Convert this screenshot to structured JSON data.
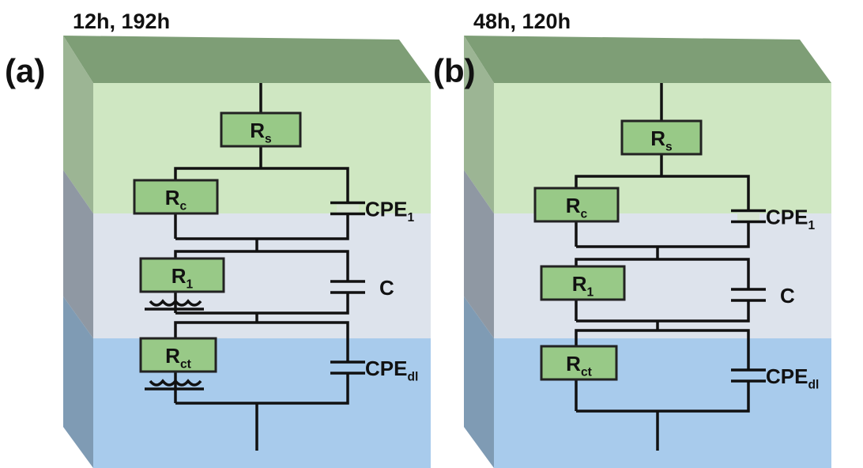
{
  "panels": [
    {
      "label": "(a)",
      "title": "12h, 192h",
      "resistors": [
        {
          "main": "R",
          "sub": "s"
        },
        {
          "main": "R",
          "sub": "c"
        },
        {
          "main": "R",
          "sub": "1"
        },
        {
          "main": "R",
          "sub": "ct"
        }
      ],
      "capacitors": [
        {
          "main": "CPE",
          "sub": "1"
        },
        {
          "main": "C",
          "sub": null
        },
        {
          "main": "CPE",
          "sub": "dl"
        }
      ]
    },
    {
      "label": "(b)",
      "title": "48h, 120h",
      "resistors": [
        {
          "main": "R",
          "sub": "s"
        },
        {
          "main": "R",
          "sub": "c"
        },
        {
          "main": "R",
          "sub": "1"
        },
        {
          "main": "R",
          "sub": "ct"
        }
      ],
      "capacitors": [
        {
          "main": "CPE",
          "sub": "1"
        },
        {
          "main": "C",
          "sub": null
        },
        {
          "main": "CPE",
          "sub": "dl"
        }
      ]
    }
  ]
}
